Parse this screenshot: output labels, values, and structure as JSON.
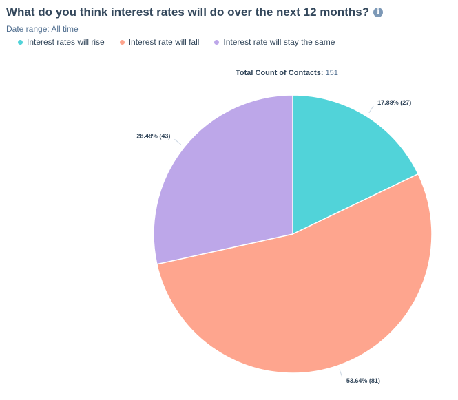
{
  "header": {
    "title": "What do you think interest rates will do over the next 12 months?",
    "info_icon": "info-icon",
    "date_range": "Date range: All time"
  },
  "total": {
    "label": "Total Count of Contacts:",
    "value": "151"
  },
  "chart_data": {
    "type": "pie",
    "title": "What do you think interest rates will do over the next 12 months?",
    "total_label": "Total Count of Contacts:",
    "total": 151,
    "legend_position": "top-left",
    "slices": [
      {
        "name": "Interest rates will rise",
        "value": 27,
        "percent": 17.88,
        "label": "17.88% (27)",
        "color": "#51d3d9"
      },
      {
        "name": "Interest rate will fall",
        "value": 81,
        "percent": 53.64,
        "label": "53.64% (81)",
        "color": "#fea58e"
      },
      {
        "name": "Interest rate will stay the same",
        "value": 43,
        "percent": 28.48,
        "label": "28.48% (43)",
        "color": "#bda7e9"
      }
    ]
  }
}
